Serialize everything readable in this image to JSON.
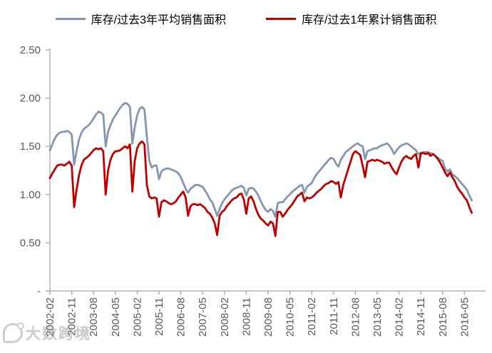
{
  "watermark": {
    "text": "大数跨境"
  },
  "colors": {
    "axis": "#a6a6a6",
    "tick_text": "#595959",
    "legend_text": "#000000",
    "watermark": "#8a8a8a",
    "series_blue": "#8496b0",
    "series_red": "#c00000"
  },
  "chart_data": {
    "type": "line",
    "title": "",
    "xlabel": "",
    "ylabel": "",
    "grid": false,
    "legend_position": "top",
    "x_unit": "month",
    "x_start": "2002-02",
    "x_end": "2016-08",
    "x_tick_interval_months": 9,
    "x_tick_labels": [
      "2002-02",
      "2002-11",
      "2003-08",
      "2004-05",
      "2005-02",
      "2005-11",
      "2006-08",
      "2007-05",
      "2008-02",
      "2008-11",
      "2009-08",
      "2010-05",
      "2011-02",
      "2011-11",
      "2012-08",
      "2013-05",
      "2014-02",
      "2014-11",
      "2015-08",
      "2016-05"
    ],
    "y_axis": {
      "min": 0,
      "max": 2.5,
      "step": 0.5,
      "tick_labels": [
        "-",
        "0.50",
        "1.00",
        "1.50",
        "2.00",
        "2.50"
      ]
    },
    "series": [
      {
        "name": "库存/过去3年平均销售面积",
        "color": "#8496b0",
        "values": [
          1.46,
          1.52,
          1.58,
          1.62,
          1.64,
          1.65,
          1.65,
          1.66,
          1.65,
          1.62,
          1.31,
          1.45,
          1.57,
          1.64,
          1.68,
          1.7,
          1.72,
          1.75,
          1.79,
          1.83,
          1.86,
          1.85,
          1.83,
          1.5,
          1.65,
          1.72,
          1.78,
          1.82,
          1.86,
          1.9,
          1.93,
          1.95,
          1.94,
          1.91,
          1.53,
          1.7,
          1.82,
          1.89,
          1.91,
          1.88,
          1.6,
          1.35,
          1.28,
          1.3,
          1.3,
          1.16,
          1.24,
          1.26,
          1.27,
          1.27,
          1.26,
          1.25,
          1.24,
          1.22,
          1.18,
          1.12,
          1.06,
          1.02,
          1.06,
          1.08,
          1.1,
          1.1,
          1.09,
          1.08,
          1.04,
          1.0,
          0.95,
          0.92,
          0.85,
          0.78,
          0.85,
          0.91,
          0.95,
          0.98,
          1.01,
          1.04,
          1.06,
          1.07,
          1.08,
          1.09,
          1.07,
          0.99,
          1.06,
          1.07,
          1.06,
          1.03,
          0.99,
          0.93,
          0.88,
          0.84,
          0.82,
          0.85,
          0.83,
          0.77,
          0.91,
          0.92,
          0.92,
          0.95,
          0.98,
          1.0,
          1.03,
          1.05,
          1.07,
          1.09,
          1.1,
          1.02,
          1.08,
          1.1,
          1.12,
          1.17,
          1.21,
          1.24,
          1.27,
          1.3,
          1.33,
          1.36,
          1.38,
          1.37,
          1.32,
          1.29,
          1.36,
          1.4,
          1.44,
          1.46,
          1.48,
          1.5,
          1.52,
          1.53,
          1.51,
          1.5,
          1.37,
          1.45,
          1.46,
          1.47,
          1.48,
          1.48,
          1.5,
          1.51,
          1.52,
          1.53,
          1.51,
          1.47,
          1.42,
          1.46,
          1.49,
          1.51,
          1.52,
          1.53,
          1.52,
          1.5,
          1.48,
          1.46,
          1.42,
          1.43,
          1.44,
          1.44,
          1.44,
          1.43,
          1.42,
          1.4,
          1.38,
          1.36,
          1.35,
          1.27,
          1.24,
          1.26,
          1.21,
          1.19,
          1.17,
          1.14,
          1.11,
          1.08,
          1.05,
          0.99,
          0.94
        ]
      },
      {
        "name": "库存/过去1年累计销售面积",
        "color": "#c00000",
        "values": [
          1.17,
          1.22,
          1.26,
          1.3,
          1.31,
          1.31,
          1.3,
          1.32,
          1.34,
          1.3,
          0.87,
          1.05,
          1.2,
          1.3,
          1.36,
          1.38,
          1.4,
          1.43,
          1.46,
          1.48,
          1.47,
          1.48,
          1.45,
          1.0,
          1.25,
          1.36,
          1.42,
          1.45,
          1.45,
          1.46,
          1.48,
          1.5,
          1.48,
          1.52,
          1.03,
          1.35,
          1.48,
          1.53,
          1.55,
          1.52,
          1.1,
          0.98,
          0.96,
          0.97,
          0.96,
          0.77,
          0.92,
          0.94,
          0.93,
          0.91,
          0.9,
          0.91,
          0.93,
          0.97,
          1.0,
          1.03,
          0.97,
          0.78,
          0.88,
          0.9,
          0.9,
          0.89,
          0.9,
          0.88,
          0.86,
          0.82,
          0.8,
          0.76,
          0.7,
          0.58,
          0.78,
          0.82,
          0.84,
          0.88,
          0.91,
          0.94,
          0.96,
          0.97,
          1.0,
          1.01,
          0.95,
          0.8,
          0.96,
          0.98,
          0.93,
          0.85,
          0.79,
          0.75,
          0.73,
          0.7,
          0.68,
          0.72,
          0.7,
          0.57,
          0.82,
          0.82,
          0.77,
          0.8,
          0.84,
          0.87,
          0.9,
          0.94,
          0.98,
          1.0,
          1.02,
          0.93,
          0.97,
          0.96,
          0.97,
          0.99,
          1.02,
          1.04,
          1.06,
          1.09,
          1.11,
          1.12,
          1.14,
          1.13,
          1.11,
          1.13,
          0.97,
          1.1,
          1.18,
          1.26,
          1.34,
          1.42,
          1.45,
          1.43,
          1.41,
          1.3,
          1.18,
          1.34,
          1.35,
          1.36,
          1.35,
          1.36,
          1.35,
          1.34,
          1.32,
          1.33,
          1.33,
          1.28,
          1.24,
          1.21,
          1.28,
          1.34,
          1.38,
          1.4,
          1.38,
          1.37,
          1.4,
          1.42,
          1.28,
          1.43,
          1.43,
          1.42,
          1.43,
          1.4,
          1.42,
          1.4,
          1.37,
          1.33,
          1.28,
          1.23,
          1.19,
          1.23,
          1.18,
          1.14,
          1.08,
          1.04,
          1.01,
          0.97,
          0.94,
          0.87,
          0.81
        ]
      }
    ]
  }
}
